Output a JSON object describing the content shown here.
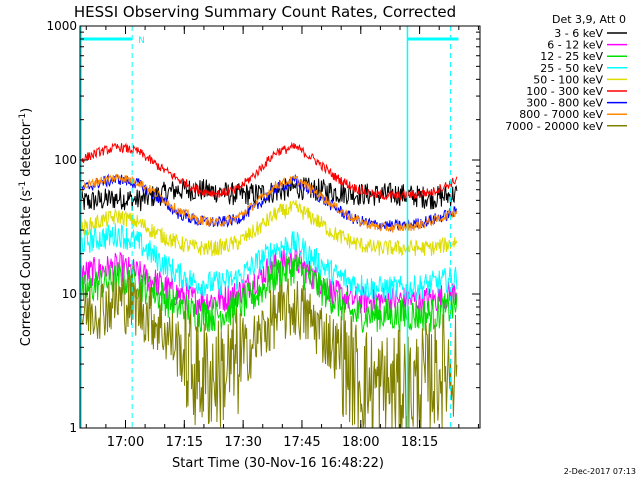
{
  "chart_data": {
    "type": "line",
    "title": "HESSI Observing Summary Count Rates, Corrected",
    "xlabel": "Start Time (30-Nov-16 16:48:22)",
    "ylabel_parts": {
      "prefix": "Corrected Count Rate (s",
      "exp1": "-1",
      "mid": " detector",
      "exp2": "-1",
      "suffix": ")"
    },
    "yscale": "log",
    "ylim": [
      1,
      1000
    ],
    "y_tick_labels": [
      "1",
      "10",
      "100",
      "1000"
    ],
    "x_tick_labels": [
      "17:00",
      "17:15",
      "17:30",
      "17:45",
      "18:00",
      "18:15"
    ],
    "xlim_minutes_after_start": [
      0,
      102
    ],
    "x_tick_minutes_after_start": [
      11.6,
      26.6,
      41.6,
      56.6,
      71.6,
      86.6
    ],
    "legend_header": "Det 3,9, Att 0",
    "legend_position": "right",
    "dashed_markers_minutes": [
      13.3,
      94.5
    ],
    "solid_markers_minutes": [
      0.0,
      83.5
    ],
    "flag_bars": [
      {
        "from": 0.0,
        "to": 13.3,
        "label": "N",
        "level": 800
      },
      {
        "from": 83.5,
        "to": 96.5,
        "label": "",
        "level": 800
      }
    ],
    "footer_date": "2-Dec-2017 07:13",
    "series_profile_minutes": [
      0,
      5,
      10,
      15,
      20,
      25,
      30,
      35,
      40,
      45,
      50,
      55,
      60,
      65,
      70,
      75,
      80,
      85,
      90,
      95,
      100
    ],
    "series": [
      {
        "name": "3 - 6 keV",
        "color": "#000000",
        "values": [
          48,
          50,
          52,
          50,
          55,
          60,
          60,
          58,
          55,
          56,
          58,
          62,
          60,
          58,
          56,
          55,
          56,
          54,
          52,
          55,
          58
        ]
      },
      {
        "name": "6 - 12 keV",
        "color": "#ff00ff",
        "values": [
          14,
          15,
          16,
          14,
          12,
          10,
          9,
          9,
          10,
          13,
          17,
          18,
          13,
          10,
          9,
          9,
          9,
          9,
          9,
          10,
          12
        ]
      },
      {
        "name": "12 - 25 keV",
        "color": "#00dd00",
        "values": [
          10,
          12,
          13,
          12,
          10,
          8,
          7,
          7,
          8,
          10,
          14,
          16,
          12,
          9,
          7,
          7,
          7,
          7,
          7,
          8,
          9
        ]
      },
      {
        "name": "25 - 50 keV",
        "color": "#00ffff",
        "values": [
          24,
          26,
          28,
          24,
          18,
          14,
          12,
          12,
          13,
          17,
          22,
          24,
          18,
          14,
          12,
          11,
          11,
          11,
          12,
          13,
          15
        ]
      },
      {
        "name": "50 - 100 keV",
        "color": "#dddd00",
        "values": [
          30,
          35,
          38,
          34,
          28,
          24,
          22,
          22,
          24,
          30,
          40,
          44,
          36,
          28,
          24,
          22,
          22,
          22,
          22,
          24,
          30
        ]
      },
      {
        "name": "100 - 300 keV",
        "color": "#ff0000",
        "values": [
          100,
          115,
          125,
          115,
          90,
          72,
          60,
          56,
          60,
          80,
          115,
          125,
          100,
          75,
          62,
          55,
          54,
          55,
          58,
          68,
          90
        ]
      },
      {
        "name": "300 - 800 keV",
        "color": "#0000ff",
        "values": [
          60,
          68,
          72,
          66,
          52,
          40,
          35,
          34,
          36,
          45,
          62,
          70,
          56,
          44,
          36,
          33,
          32,
          33,
          36,
          40,
          48
        ]
      },
      {
        "name": "800 - 7000 keV",
        "color": "#ff8800",
        "values": [
          62,
          70,
          75,
          68,
          55,
          42,
          36,
          34,
          37,
          48,
          65,
          72,
          58,
          45,
          36,
          32,
          31,
          32,
          35,
          40,
          48
        ]
      },
      {
        "name": "7000 - 20000 keV",
        "color": "#808000",
        "values": [
          7,
          8,
          9,
          8,
          6,
          4,
          2.5,
          2.5,
          3,
          4.5,
          7,
          8,
          6,
          4,
          2.5,
          2,
          2,
          2,
          2.5,
          3,
          4.5
        ]
      }
    ]
  }
}
